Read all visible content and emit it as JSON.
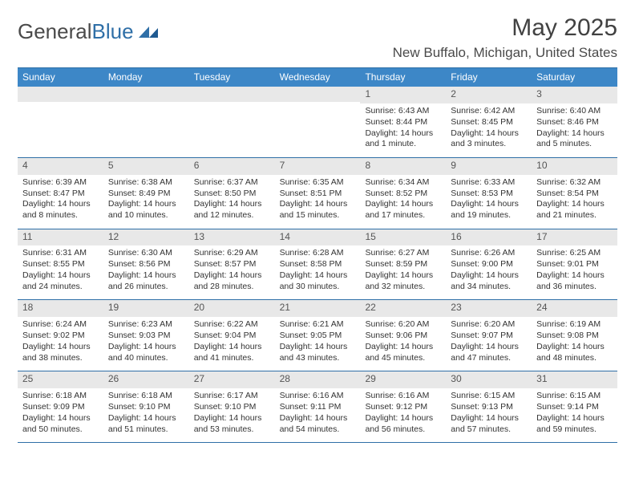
{
  "brand": {
    "part1": "General",
    "part2": "Blue"
  },
  "title": "May 2025",
  "location": "New Buffalo, Michigan, United States",
  "weekdays": [
    "Sunday",
    "Monday",
    "Tuesday",
    "Wednesday",
    "Thursday",
    "Friday",
    "Saturday"
  ],
  "header_bg": "#3d87c7",
  "rule_color": "#2f6fa7",
  "daynum_bg": "#e8e8e8",
  "weeks": [
    [
      {
        "n": "",
        "sr": "",
        "ss": "",
        "dl": ""
      },
      {
        "n": "",
        "sr": "",
        "ss": "",
        "dl": ""
      },
      {
        "n": "",
        "sr": "",
        "ss": "",
        "dl": ""
      },
      {
        "n": "",
        "sr": "",
        "ss": "",
        "dl": ""
      },
      {
        "n": "1",
        "sr": "Sunrise: 6:43 AM",
        "ss": "Sunset: 8:44 PM",
        "dl": "Daylight: 14 hours and 1 minute."
      },
      {
        "n": "2",
        "sr": "Sunrise: 6:42 AM",
        "ss": "Sunset: 8:45 PM",
        "dl": "Daylight: 14 hours and 3 minutes."
      },
      {
        "n": "3",
        "sr": "Sunrise: 6:40 AM",
        "ss": "Sunset: 8:46 PM",
        "dl": "Daylight: 14 hours and 5 minutes."
      }
    ],
    [
      {
        "n": "4",
        "sr": "Sunrise: 6:39 AM",
        "ss": "Sunset: 8:47 PM",
        "dl": "Daylight: 14 hours and 8 minutes."
      },
      {
        "n": "5",
        "sr": "Sunrise: 6:38 AM",
        "ss": "Sunset: 8:49 PM",
        "dl": "Daylight: 14 hours and 10 minutes."
      },
      {
        "n": "6",
        "sr": "Sunrise: 6:37 AM",
        "ss": "Sunset: 8:50 PM",
        "dl": "Daylight: 14 hours and 12 minutes."
      },
      {
        "n": "7",
        "sr": "Sunrise: 6:35 AM",
        "ss": "Sunset: 8:51 PM",
        "dl": "Daylight: 14 hours and 15 minutes."
      },
      {
        "n": "8",
        "sr": "Sunrise: 6:34 AM",
        "ss": "Sunset: 8:52 PM",
        "dl": "Daylight: 14 hours and 17 minutes."
      },
      {
        "n": "9",
        "sr": "Sunrise: 6:33 AM",
        "ss": "Sunset: 8:53 PM",
        "dl": "Daylight: 14 hours and 19 minutes."
      },
      {
        "n": "10",
        "sr": "Sunrise: 6:32 AM",
        "ss": "Sunset: 8:54 PM",
        "dl": "Daylight: 14 hours and 21 minutes."
      }
    ],
    [
      {
        "n": "11",
        "sr": "Sunrise: 6:31 AM",
        "ss": "Sunset: 8:55 PM",
        "dl": "Daylight: 14 hours and 24 minutes."
      },
      {
        "n": "12",
        "sr": "Sunrise: 6:30 AM",
        "ss": "Sunset: 8:56 PM",
        "dl": "Daylight: 14 hours and 26 minutes."
      },
      {
        "n": "13",
        "sr": "Sunrise: 6:29 AM",
        "ss": "Sunset: 8:57 PM",
        "dl": "Daylight: 14 hours and 28 minutes."
      },
      {
        "n": "14",
        "sr": "Sunrise: 6:28 AM",
        "ss": "Sunset: 8:58 PM",
        "dl": "Daylight: 14 hours and 30 minutes."
      },
      {
        "n": "15",
        "sr": "Sunrise: 6:27 AM",
        "ss": "Sunset: 8:59 PM",
        "dl": "Daylight: 14 hours and 32 minutes."
      },
      {
        "n": "16",
        "sr": "Sunrise: 6:26 AM",
        "ss": "Sunset: 9:00 PM",
        "dl": "Daylight: 14 hours and 34 minutes."
      },
      {
        "n": "17",
        "sr": "Sunrise: 6:25 AM",
        "ss": "Sunset: 9:01 PM",
        "dl": "Daylight: 14 hours and 36 minutes."
      }
    ],
    [
      {
        "n": "18",
        "sr": "Sunrise: 6:24 AM",
        "ss": "Sunset: 9:02 PM",
        "dl": "Daylight: 14 hours and 38 minutes."
      },
      {
        "n": "19",
        "sr": "Sunrise: 6:23 AM",
        "ss": "Sunset: 9:03 PM",
        "dl": "Daylight: 14 hours and 40 minutes."
      },
      {
        "n": "20",
        "sr": "Sunrise: 6:22 AM",
        "ss": "Sunset: 9:04 PM",
        "dl": "Daylight: 14 hours and 41 minutes."
      },
      {
        "n": "21",
        "sr": "Sunrise: 6:21 AM",
        "ss": "Sunset: 9:05 PM",
        "dl": "Daylight: 14 hours and 43 minutes."
      },
      {
        "n": "22",
        "sr": "Sunrise: 6:20 AM",
        "ss": "Sunset: 9:06 PM",
        "dl": "Daylight: 14 hours and 45 minutes."
      },
      {
        "n": "23",
        "sr": "Sunrise: 6:20 AM",
        "ss": "Sunset: 9:07 PM",
        "dl": "Daylight: 14 hours and 47 minutes."
      },
      {
        "n": "24",
        "sr": "Sunrise: 6:19 AM",
        "ss": "Sunset: 9:08 PM",
        "dl": "Daylight: 14 hours and 48 minutes."
      }
    ],
    [
      {
        "n": "25",
        "sr": "Sunrise: 6:18 AM",
        "ss": "Sunset: 9:09 PM",
        "dl": "Daylight: 14 hours and 50 minutes."
      },
      {
        "n": "26",
        "sr": "Sunrise: 6:18 AM",
        "ss": "Sunset: 9:10 PM",
        "dl": "Daylight: 14 hours and 51 minutes."
      },
      {
        "n": "27",
        "sr": "Sunrise: 6:17 AM",
        "ss": "Sunset: 9:10 PM",
        "dl": "Daylight: 14 hours and 53 minutes."
      },
      {
        "n": "28",
        "sr": "Sunrise: 6:16 AM",
        "ss": "Sunset: 9:11 PM",
        "dl": "Daylight: 14 hours and 54 minutes."
      },
      {
        "n": "29",
        "sr": "Sunrise: 6:16 AM",
        "ss": "Sunset: 9:12 PM",
        "dl": "Daylight: 14 hours and 56 minutes."
      },
      {
        "n": "30",
        "sr": "Sunrise: 6:15 AM",
        "ss": "Sunset: 9:13 PM",
        "dl": "Daylight: 14 hours and 57 minutes."
      },
      {
        "n": "31",
        "sr": "Sunrise: 6:15 AM",
        "ss": "Sunset: 9:14 PM",
        "dl": "Daylight: 14 hours and 59 minutes."
      }
    ]
  ]
}
